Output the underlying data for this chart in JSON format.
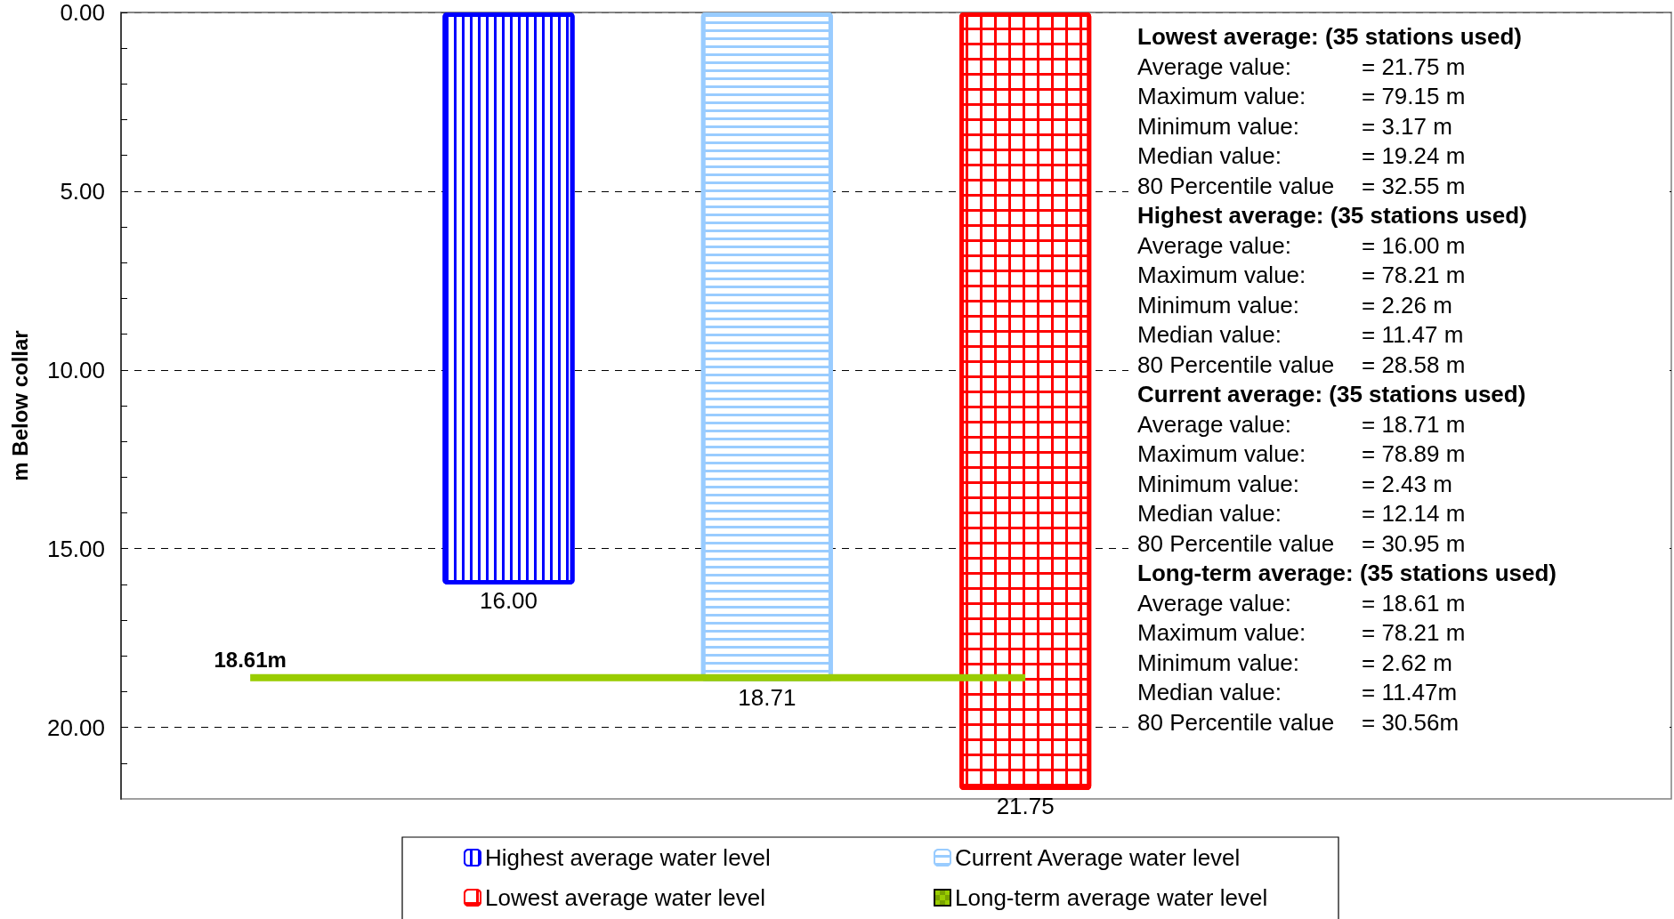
{
  "chart_data": {
    "type": "bar",
    "ylabel": "m Below collar",
    "categories": [
      null,
      null,
      null,
      null,
      null,
      null
    ],
    "ylim": [
      22,
      0
    ],
    "yticks": [
      {
        "value": 0,
        "label": "0.00"
      },
      {
        "value": 1,
        "label": null
      },
      {
        "value": 2,
        "label": null
      },
      {
        "value": 3,
        "label": null
      },
      {
        "value": 4,
        "label": null
      },
      {
        "value": 5,
        "label": "5.00"
      },
      {
        "value": 6,
        "label": null
      },
      {
        "value": 7,
        "label": null
      },
      {
        "value": 8,
        "label": null
      },
      {
        "value": 9,
        "label": null
      },
      {
        "value": 10,
        "label": "10.00"
      },
      {
        "value": 11,
        "label": null
      },
      {
        "value": 12,
        "label": null
      },
      {
        "value": 13,
        "label": null
      },
      {
        "value": 14,
        "label": null
      },
      {
        "value": 15,
        "label": "15.00"
      },
      {
        "value": 16,
        "label": null
      },
      {
        "value": 17,
        "label": null
      },
      {
        "value": 18,
        "label": null
      },
      {
        "value": 19,
        "label": null
      },
      {
        "value": 20,
        "label": "20.00"
      },
      {
        "value": 21,
        "label": null
      }
    ],
    "tick_labels": "y",
    "grid": "y",
    "legend": "bottom",
    "series": [
      {
        "name": "Highest average water level",
        "color": "#0000ff",
        "values": [
          null,
          16,
          null,
          null,
          null,
          null
        ],
        "value_labels": [
          null,
          "16.00",
          null,
          null,
          null,
          null
        ]
      },
      {
        "name": "Current Average water level",
        "color": "#99ccff",
        "values": [
          null,
          null,
          18.71,
          null,
          null,
          null
        ],
        "value_labels": [
          null,
          null,
          "18.71",
          null,
          null,
          null
        ]
      },
      {
        "name": "Lowest average water level",
        "color": "#ff0000",
        "values": [
          null,
          null,
          null,
          21.75,
          null,
          null
        ],
        "value_labels": [
          null,
          null,
          null,
          "21.75",
          null,
          null
        ]
      },
      {
        "name": "Long-term average water level",
        "type": "line",
        "color": "#99cc00",
        "values": [
          18.61,
          18.61,
          18.61,
          18.61,
          null,
          null
        ],
        "value_labels": [
          "18.61m",
          null,
          null,
          null,
          null,
          null
        ]
      }
    ],
    "annotations": [
      "Lowest average: (35 stations used)",
      "Average value: = 21.75 m",
      "Maximum value: = 79.15 m",
      "Minimum value: = 3.17 m",
      "Median value: = 19.24 m",
      "80 Percentile value = 32.55 m",
      "Highest average: (35 stations used)",
      "Average value: = 16.00 m",
      "Maximum value: = 78.21 m",
      "Minimum value: = 2.26 m",
      "Median value: = 11.47 m",
      "80 Percentile value = 28.58 m",
      "Current average: (35 stations used)",
      "Average value: = 18.71 m",
      "Maximum value: = 78.89 m",
      "Minimum value: = 2.43 m",
      "Median value: = 12.14 m",
      "80 Percentile value = 30.95 m",
      "Long-term average: (35 stations used)",
      "Average value: = 18.61 m",
      "Maximum value: = 78.21 m",
      "Minimum value: = 2.62 m",
      "Median value: = 11.47m",
      "80 Percentile value = 30.56m"
    ]
  }
}
